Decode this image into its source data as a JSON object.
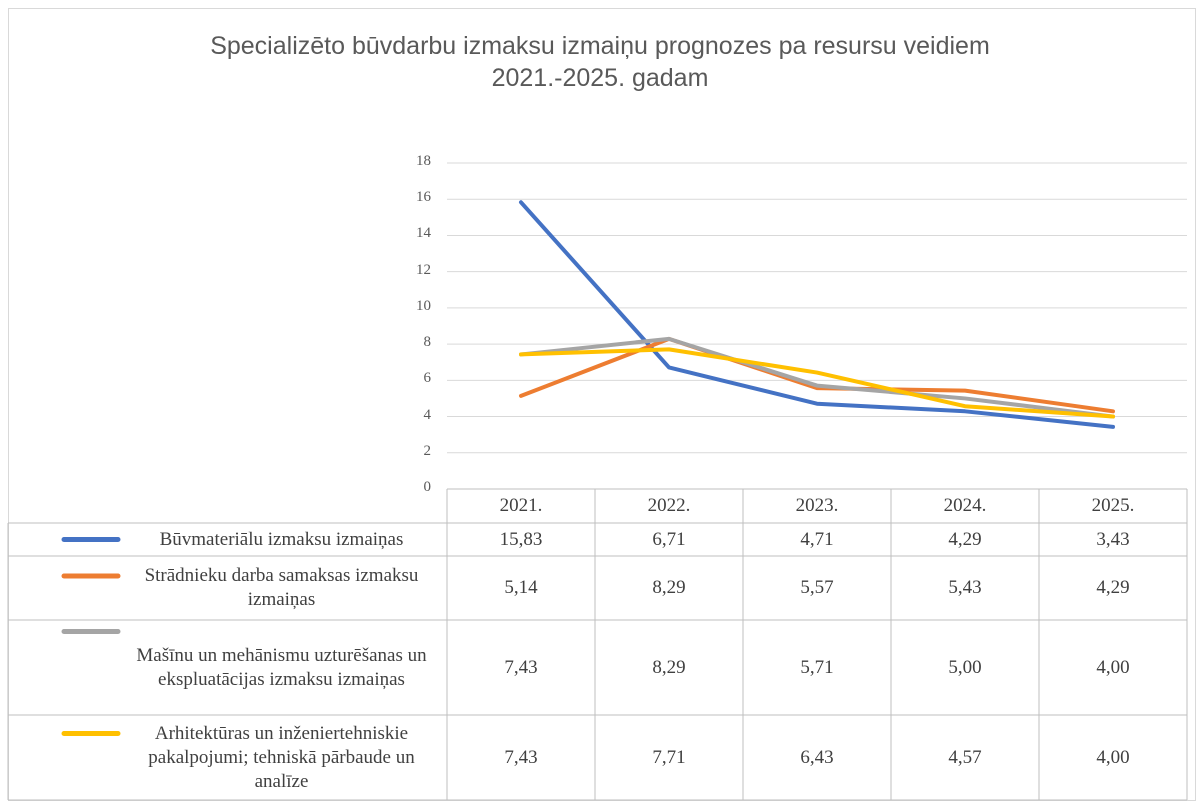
{
  "chart_data": {
    "type": "line",
    "title": "Specializēto būvdarbu izmaksu izmaiņu prognozes pa resursu veidiem 2021.-2025. gadam",
    "categories": [
      "2021.",
      "2022.",
      "2023.",
      "2024.",
      "2025."
    ],
    "series": [
      {
        "name": "Būvmateriālu izmaksu izmaiņas",
        "color": "#4472c4",
        "values": [
          15.83,
          6.71,
          4.71,
          4.29,
          3.43
        ],
        "value_labels": [
          "15,83",
          "6,71",
          "4,71",
          "4,29",
          "3,43"
        ]
      },
      {
        "name": "Strādnieku darba samaksas izmaksu izmaiņas",
        "color": "#ed7d31",
        "values": [
          5.14,
          8.29,
          5.57,
          5.43,
          4.29
        ],
        "value_labels": [
          "5,14",
          "8,29",
          "5,57",
          "5,43",
          "4,29"
        ]
      },
      {
        "name": "Mašīnu un mehānismu uzturēšanas un ekspluatācijas izmaksu izmaiņas",
        "color": "#a5a5a5",
        "values": [
          7.43,
          8.29,
          5.71,
          5,
          4
        ],
        "value_labels": [
          "7,43",
          "8,29",
          "5,71",
          "5,00",
          "4,00"
        ]
      },
      {
        "name": "Arhitektūras un inženiertehniskie pakalpojumi; tehniskā pārbaude un analīze",
        "color": "#ffc000",
        "values": [
          7.43,
          7.71,
          6.43,
          4.57,
          4
        ],
        "value_labels": [
          "7,43",
          "7,71",
          "6,43",
          "4,57",
          "4,00"
        ]
      }
    ],
    "ylim": [
      0,
      18
    ],
    "yticks": [
      0,
      2,
      4,
      6,
      8,
      10,
      12,
      14,
      16,
      18
    ],
    "grid": true
  }
}
